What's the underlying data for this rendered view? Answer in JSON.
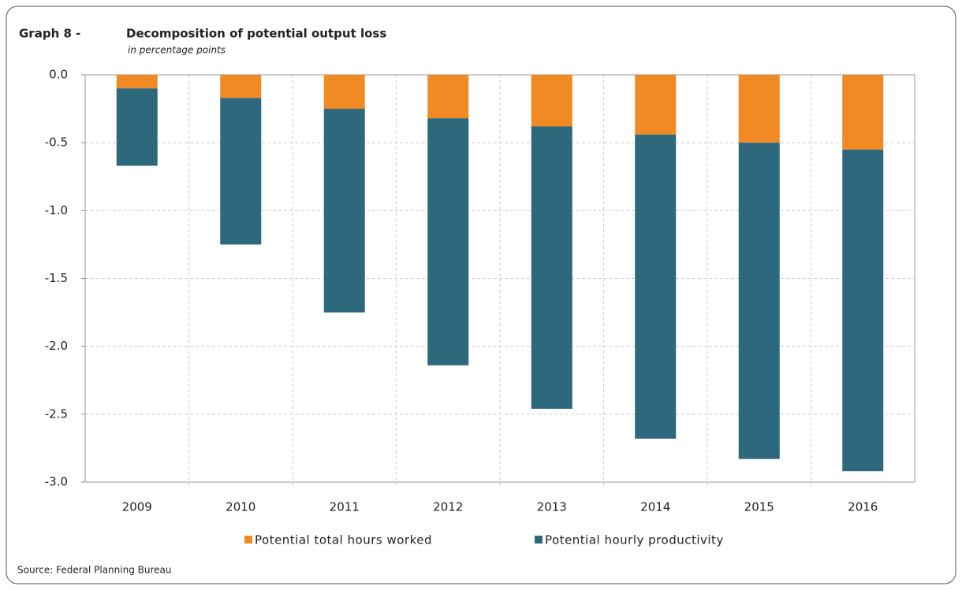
{
  "chart_data": {
    "type": "stacked-bar",
    "figure_label": "Graph 8 -",
    "title": "Decomposition of potential output loss",
    "subtitle": "in percentage points",
    "source": "Source: Federal Planning Bureau",
    "categories": [
      "2009",
      "2010",
      "2011",
      "2012",
      "2013",
      "2014",
      "2015",
      "2016"
    ],
    "series": [
      {
        "name": "Potential total hours worked",
        "color": "#f28a23",
        "values": [
          -0.1,
          -0.17,
          -0.25,
          -0.32,
          -0.38,
          -0.44,
          -0.5,
          -0.55
        ]
      },
      {
        "name": "Potential hourly productivity",
        "color": "#2e687d",
        "values": [
          -0.57,
          -1.08,
          -1.5,
          -1.82,
          -2.08,
          -2.24,
          -2.33,
          -2.37
        ]
      }
    ],
    "ylim": [
      -3,
      0
    ],
    "yticks": [
      {
        "value": 0,
        "label": "0.0"
      },
      -0.5,
      {
        "value": -1,
        "label": "-1.0"
      },
      -1.5,
      {
        "value": -2,
        "label": "-2.0"
      },
      -2.5,
      {
        "value": -3,
        "label": "-3.0"
      }
    ],
    "grid": true,
    "legend": "bottom"
  }
}
